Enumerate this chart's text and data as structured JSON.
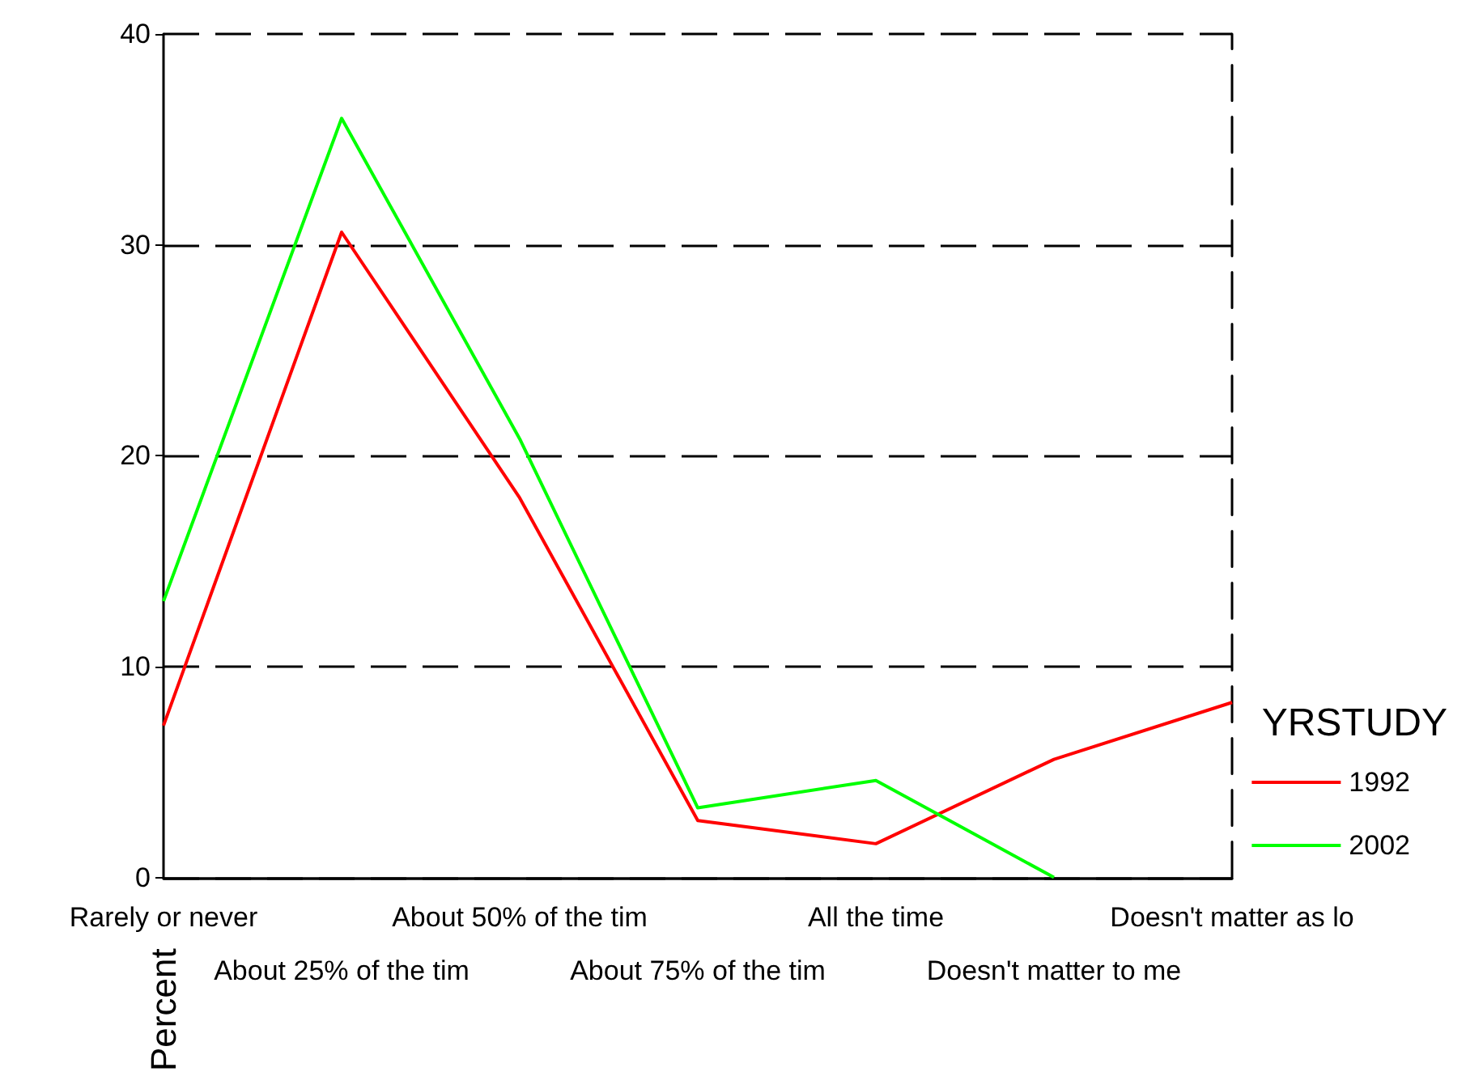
{
  "chart_data": {
    "type": "line",
    "categories": [
      "Rarely or never",
      "About 25% of the tim",
      "About 50% of the tim",
      "About 75% of the tim",
      "All the time",
      "Doesn't matter to me",
      "Doesn't matter as lo"
    ],
    "series": [
      {
        "name": "1992",
        "color": "#ff0000",
        "values": [
          7.2,
          30.6,
          18.0,
          2.7,
          1.6,
          5.6,
          8.3
        ]
      },
      {
        "name": "2002",
        "color": "#00ff00",
        "values": [
          13.1,
          36.0,
          20.8,
          3.3,
          4.6,
          0,
          null
        ]
      }
    ],
    "ylabel": "Percent",
    "legend_title": "YRSTUDY",
    "ylim": [
      0,
      40
    ],
    "yticks": [
      0,
      10,
      20,
      30,
      40
    ],
    "grid": "y",
    "legend": "right",
    "marker": "none",
    "line_style": "solid"
  }
}
